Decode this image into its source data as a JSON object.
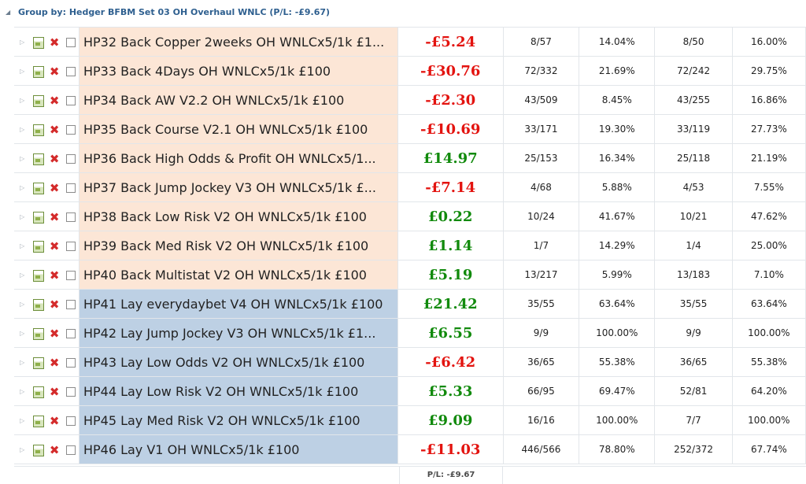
{
  "group": {
    "caret": "◢",
    "label": "Group by: Hedger BFBM Set 03 OH Overhaul WNLC (P/L: -£9.67)"
  },
  "icons": {
    "expand": "triangle-right-icon",
    "edit": "calendar-icon",
    "delete": "x-icon"
  },
  "colors": {
    "negative": "#e3130f",
    "positive": "#118a0c",
    "back_row": "#fce6d6",
    "lay_row": "#bdd0e4"
  },
  "rows": [
    {
      "name": "HP32 Back Copper 2weeks OH WNLCx5/1k £1...",
      "pl": "-£5.24",
      "c1": "8/57",
      "c2": "14.04%",
      "c3": "8/50",
      "c4": "16.00%",
      "type": "back",
      "sign": "neg"
    },
    {
      "name": "HP33 Back 4Days OH WNLCx5/1k £100",
      "pl": "-£30.76",
      "c1": "72/332",
      "c2": "21.69%",
      "c3": "72/242",
      "c4": "29.75%",
      "type": "back",
      "sign": "neg"
    },
    {
      "name": "HP34 Back AW V2.2 OH WNLCx5/1k £100",
      "pl": "-£2.30",
      "c1": "43/509",
      "c2": "8.45%",
      "c3": "43/255",
      "c4": "16.86%",
      "type": "back",
      "sign": "neg"
    },
    {
      "name": "HP35 Back Course V2.1 OH WNLCx5/1k £100",
      "pl": "-£10.69",
      "c1": "33/171",
      "c2": "19.30%",
      "c3": "33/119",
      "c4": "27.73%",
      "type": "back",
      "sign": "neg"
    },
    {
      "name": "HP36 Back High Odds & Profit OH WNLCx5/1...",
      "pl": "£14.97",
      "c1": "25/153",
      "c2": "16.34%",
      "c3": "25/118",
      "c4": "21.19%",
      "type": "back",
      "sign": "pos"
    },
    {
      "name": "HP37 Back Jump Jockey V3 OH WNLCx5/1k £...",
      "pl": "-£7.14",
      "c1": "4/68",
      "c2": "5.88%",
      "c3": "4/53",
      "c4": "7.55%",
      "type": "back",
      "sign": "neg"
    },
    {
      "name": "HP38 Back Low Risk V2 OH WNLCx5/1k £100",
      "pl": "£0.22",
      "c1": "10/24",
      "c2": "41.67%",
      "c3": "10/21",
      "c4": "47.62%",
      "type": "back",
      "sign": "pos"
    },
    {
      "name": "HP39 Back Med Risk V2 OH WNLCx5/1k £100",
      "pl": "£1.14",
      "c1": "1/7",
      "c2": "14.29%",
      "c3": "1/4",
      "c4": "25.00%",
      "type": "back",
      "sign": "pos"
    },
    {
      "name": "HP40 Back Multistat V2 OH WNLCx5/1k £100",
      "pl": "£5.19",
      "c1": "13/217",
      "c2": "5.99%",
      "c3": "13/183",
      "c4": "7.10%",
      "type": "back",
      "sign": "pos"
    },
    {
      "name": "HP41 Lay everydaybet V4 OH WNLCx5/1k £100",
      "pl": "£21.42",
      "c1": "35/55",
      "c2": "63.64%",
      "c3": "35/55",
      "c4": "63.64%",
      "type": "lay",
      "sign": "pos"
    },
    {
      "name": "HP42 Lay Jump Jockey V3 OH WNLCx5/1k £1...",
      "pl": "£6.55",
      "c1": "9/9",
      "c2": "100.00%",
      "c3": "9/9",
      "c4": "100.00%",
      "type": "lay",
      "sign": "pos"
    },
    {
      "name": "HP43 Lay Low Odds V2 OH WNLCx5/1k £100",
      "pl": "-£6.42",
      "c1": "36/65",
      "c2": "55.38%",
      "c3": "36/65",
      "c4": "55.38%",
      "type": "lay",
      "sign": "neg"
    },
    {
      "name": "HP44 Lay Low Risk V2 OH WNLCx5/1k £100",
      "pl": "£5.33",
      "c1": "66/95",
      "c2": "69.47%",
      "c3": "52/81",
      "c4": "64.20%",
      "type": "lay",
      "sign": "pos"
    },
    {
      "name": "HP45 Lay Med Risk V2 OH WNLCx5/1k £100",
      "pl": "£9.09",
      "c1": "16/16",
      "c2": "100.00%",
      "c3": "7/7",
      "c4": "100.00%",
      "type": "lay",
      "sign": "pos"
    },
    {
      "name": "HP46 Lay V1 OH WNLCx5/1k £100",
      "pl": "-£11.03",
      "c1": "446/566",
      "c2": "78.80%",
      "c3": "252/372",
      "c4": "67.74%",
      "type": "lay",
      "sign": "neg"
    }
  ],
  "footer": {
    "total": "P/L: -£9.67"
  }
}
